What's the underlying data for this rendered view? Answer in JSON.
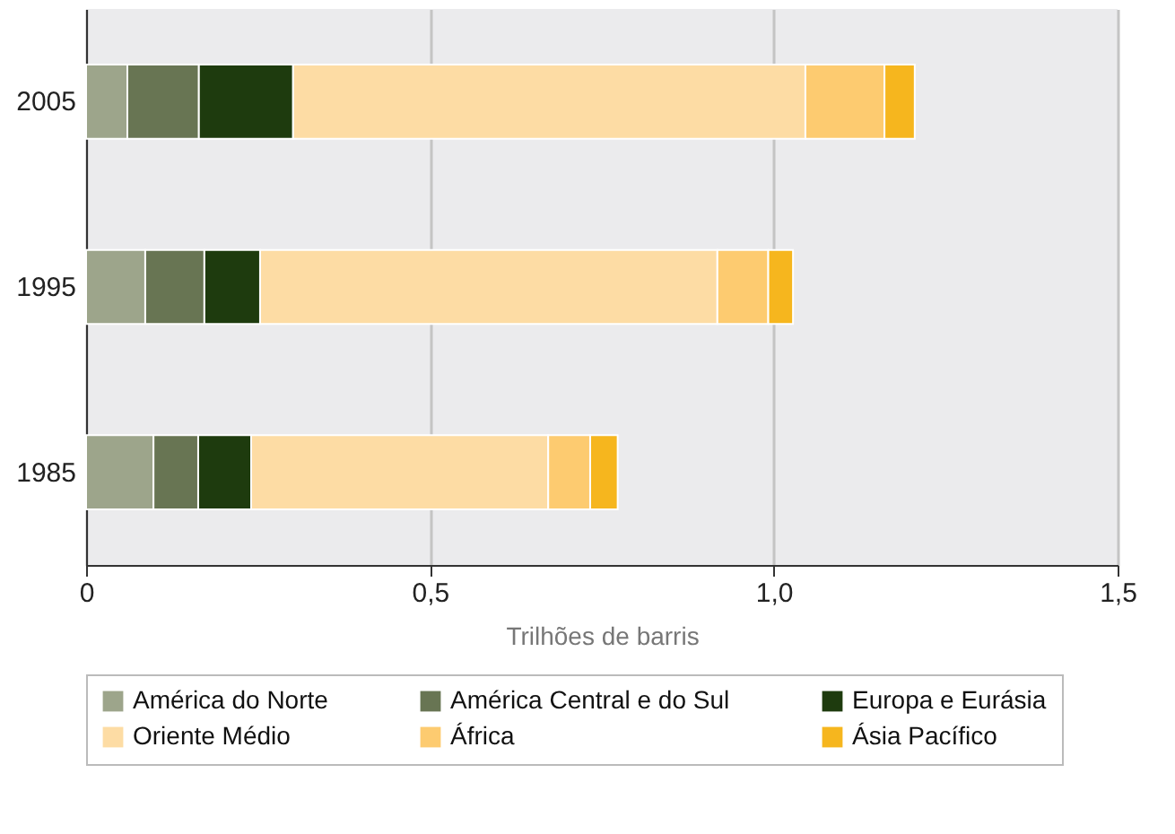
{
  "chart_data": {
    "type": "bar",
    "orientation": "horizontal",
    "stacked": true,
    "xlabel": "Trilhões de barris",
    "categories": [
      "2005",
      "1995",
      "1985"
    ],
    "series": [
      {
        "name": "América do Norte",
        "color": "#9da58b",
        "values": [
          0.06,
          0.086,
          0.098
        ]
      },
      {
        "name": "América Central e do Sul",
        "color": "#687553",
        "values": [
          0.104,
          0.086,
          0.065
        ]
      },
      {
        "name": "Europa e Eurásia",
        "color": "#1e3b0e",
        "values": [
          0.137,
          0.081,
          0.077
        ]
      },
      {
        "name": "Oriente Médio",
        "color": "#fddca4",
        "values": [
          0.745,
          0.665,
          0.432
        ]
      },
      {
        "name": "África",
        "color": "#fdcb70",
        "values": [
          0.115,
          0.074,
          0.061
        ]
      },
      {
        "name": "Ásia Pacífico",
        "color": "#f6b61e",
        "values": [
          0.044,
          0.036,
          0.04
        ]
      }
    ],
    "xlim": [
      0,
      1.5
    ],
    "xticks": [
      0,
      {
        "value": 0.5,
        "label": "0,5"
      },
      {
        "value": 1,
        "label": "1,0"
      },
      {
        "value": 1.5,
        "label": "1,5"
      }
    ],
    "grid": "x",
    "legend": "bottom"
  }
}
